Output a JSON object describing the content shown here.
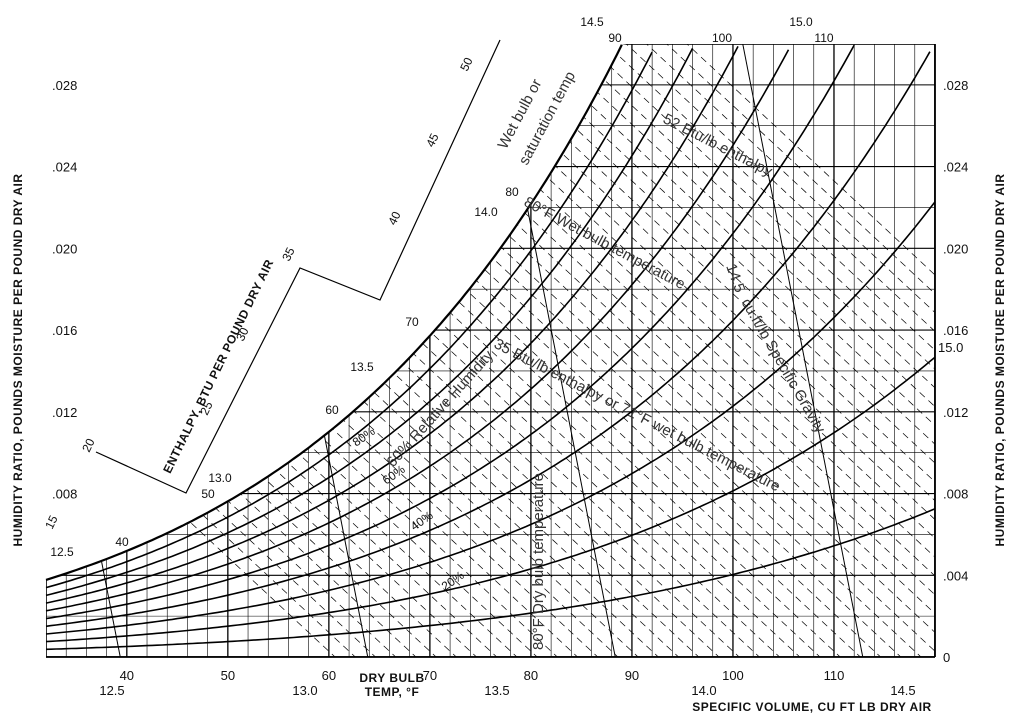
{
  "chart_data": {
    "type": "psychrometric",
    "x_axis": {
      "label_line1": "DRY BULB",
      "label_line2": "TEMP, °F",
      "range": [
        32,
        120
      ],
      "ticks": [
        "40",
        "50",
        "60",
        "70",
        "80",
        "90",
        "100",
        "110"
      ]
    },
    "y_axis": {
      "label": "HUMIDITY RATIO, POUNDS MOISTURE PER POUND DRY AIR",
      "range": [
        0,
        0.03
      ],
      "left_ticks": [
        ".008",
        ".012",
        ".016",
        ".020",
        ".024",
        ".028"
      ],
      "right_ticks": [
        "0",
        ".004",
        ".008",
        ".012",
        ".016",
        ".020",
        ".024",
        ".028"
      ]
    },
    "enthalpy_scale": {
      "label": "ENTHALPY, BTU PER POUND DRY AIR",
      "ticks": [
        "15",
        "20",
        "25",
        "30",
        "35",
        "40",
        "45",
        "50"
      ]
    },
    "wet_bulb_labels": [
      "40",
      "50",
      "60",
      "70",
      "80",
      "90",
      "100",
      "110"
    ],
    "specific_volume": {
      "label": "SPECIFIC VOLUME, CU FT LB DRY AIR",
      "bottom_ticks": [
        "12.5",
        "13.0",
        "13.5",
        "14.0",
        "14.5"
      ],
      "line_labels": [
        "12.5",
        "13.0",
        "13.5",
        "14.0",
        "14.5",
        "15.0"
      ],
      "right_label": "15.0"
    },
    "rh_curves": [
      "20%",
      "40%",
      "60%",
      "80%"
    ],
    "annotations": {
      "wet_bulb_sat_1": "Wet bulb or",
      "wet_bulb_sat_2": "saturation temp",
      "enthalpy_52": "52 Btu/lb enthalpy",
      "wet_bulb_80": "80°F Wet bulb temperature",
      "specific_volume_145": "14.5",
      "specific_volume_ft": "cu.ft/lb Specific Gravity",
      "enthalpy_35": "35 Btu/lb enthalpy or 71°F wet bulb temperature",
      "relative_humidity": "60% Relative Humidity",
      "dry_bulb_80": "80°F Dry bulb temperature"
    }
  }
}
